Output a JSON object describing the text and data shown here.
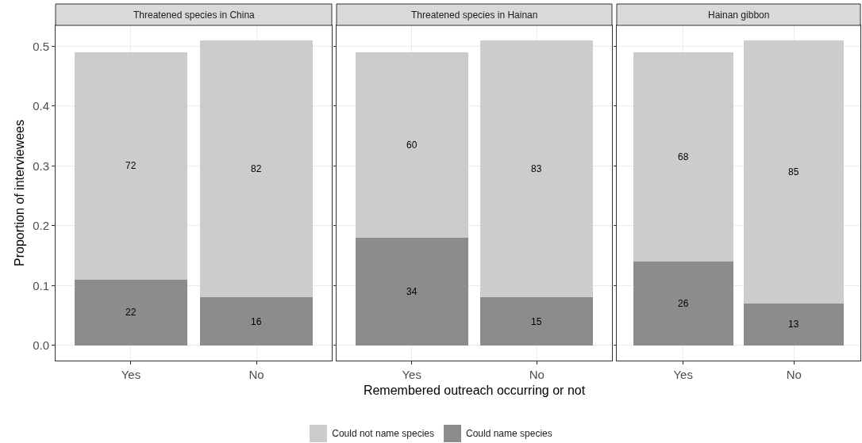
{
  "chart_data": [
    {
      "type": "bar",
      "title": "Threatened species in China",
      "ylabel": "Proportion of interviewees",
      "categories": [
        "Yes",
        "No"
      ],
      "stacked": true,
      "ylim": [
        -0.0255,
        0.535
      ],
      "yticks": [
        {
          "value": 0,
          "label": "0.0"
        },
        0.1,
        0.2,
        0.3,
        0.4,
        0.5
      ],
      "grid": true,
      "legend": "bottom",
      "series": [
        {
          "name": "Could name species",
          "color": "#8c8c8c",
          "values": [
            0.11,
            0.08
          ]
        },
        {
          "name": "Could not name species",
          "color": "#cccccc",
          "values": [
            0.38,
            0.43
          ]
        }
      ],
      "annotations": [
        "22",
        "16",
        "72",
        "82"
      ]
    },
    {
      "type": "bar",
      "title": "Threatened species in Hainan",
      "xlabel": "Remembered outreach occurring or not",
      "categories": [
        "Yes",
        "No"
      ],
      "stacked": true,
      "ylim": [
        -0.0255,
        0.535
      ],
      "yticks": [
        {
          "value": 0,
          "label": null
        },
        {
          "value": 0.1,
          "label": null
        },
        {
          "value": 0.2,
          "label": null
        },
        {
          "value": 0.3,
          "label": null
        },
        {
          "value": 0.4,
          "label": null
        },
        {
          "value": 0.5,
          "label": null
        }
      ],
      "grid": true,
      "tick_labels": "x",
      "series": [
        {
          "color": "#8c8c8c",
          "values": [
            0.18,
            0.08
          ]
        },
        {
          "color": "#cccccc",
          "values": [
            0.31,
            0.43
          ]
        }
      ],
      "annotations": [
        "34",
        "15",
        "60",
        "83"
      ]
    },
    {
      "type": "bar",
      "title": "Hainan gibbon",
      "categories": [
        "Yes",
        "No"
      ],
      "stacked": true,
      "ylim": [
        -0.0255,
        0.535
      ],
      "yticks": [
        {
          "value": 0,
          "label": null
        },
        {
          "value": 0.1,
          "label": null
        },
        {
          "value": 0.2,
          "label": null
        },
        {
          "value": 0.3,
          "label": null
        },
        {
          "value": 0.4,
          "label": null
        },
        {
          "value": 0.5,
          "label": null
        }
      ],
      "grid": true,
      "tick_labels": "x",
      "series": [
        {
          "color": "#8c8c8c",
          "values": [
            0.14,
            0.07
          ]
        },
        {
          "color": "#cccccc",
          "values": [
            0.35,
            0.44
          ]
        }
      ],
      "annotations": [
        "26",
        "13",
        "68",
        "85"
      ]
    }
  ]
}
